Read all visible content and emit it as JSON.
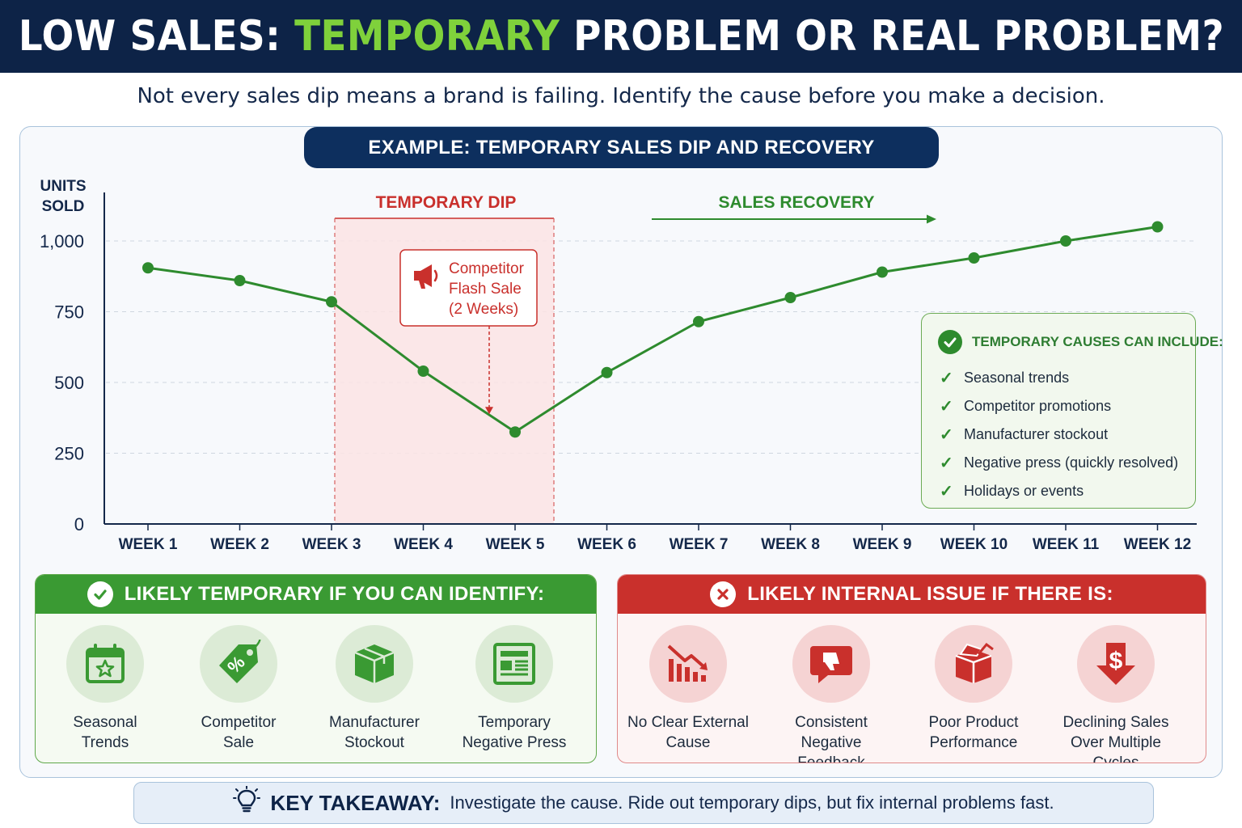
{
  "title": {
    "part1": "LOW SALES:",
    "highlight": "TEMPORARY",
    "part2": "PROBLEM OR REAL PROBLEM?"
  },
  "subtitle": "Not every sales dip means a brand is failing. Identify the cause before you make a decision.",
  "example_label": "EXAMPLE: TEMPORARY SALES DIP AND RECOVERY",
  "chart_data": {
    "type": "line",
    "ylabel_line1": "UNITS",
    "ylabel_line2": "SOLD",
    "categories": [
      "WEEK 1",
      "WEEK 2",
      "WEEK 3",
      "WEEK 4",
      "WEEK 5",
      "WEEK 6",
      "WEEK 7",
      "WEEK 8",
      "WEEK 9",
      "WEEK 10",
      "WEEK 11",
      "WEEK 12"
    ],
    "values": [
      905,
      860,
      785,
      540,
      325,
      535,
      715,
      800,
      890,
      940,
      1000,
      1050
    ],
    "ylim": [
      0,
      1000
    ],
    "yticks": [
      0,
      250,
      500,
      750,
      1000
    ],
    "ytick_labels": [
      "0",
      "250",
      "500",
      "750",
      "1,000"
    ],
    "grid": true,
    "line_color": "#2e8b2e",
    "dip_region": {
      "from": "WEEK 3",
      "to": "WEEK 5",
      "label": "TEMPORARY DIP",
      "color": "#c9302c"
    },
    "recovery_label": "SALES RECOVERY",
    "annotation": {
      "lines": [
        "Competitor",
        "Flash Sale",
        "(2 Weeks)"
      ],
      "points_to": "WEEK 5",
      "icon": "megaphone-icon"
    }
  },
  "temporary_causes": {
    "heading": "TEMPORARY CAUSES CAN INCLUDE:",
    "items": [
      "Seasonal trends",
      "Competitor promotions",
      "Manufacturer stockout",
      "Negative press (quickly resolved)",
      "Holidays or events"
    ]
  },
  "temporary_card": {
    "heading": "LIKELY TEMPORARY IF YOU CAN IDENTIFY:",
    "accent": "#3a9a33",
    "items": [
      {
        "label": "Seasonal\nTrends",
        "icon": "calendar-star-icon"
      },
      {
        "label": "Competitor\nSale",
        "icon": "percent-tag-icon"
      },
      {
        "label": "Manufacturer\nStockout",
        "icon": "box-icon"
      },
      {
        "label": "Temporary\nNegative Press",
        "icon": "newspaper-icon"
      }
    ]
  },
  "internal_card": {
    "heading": "LIKELY INTERNAL ISSUE IF THERE IS:",
    "accent": "#c9302c",
    "items": [
      {
        "label": "No Clear External\nCause",
        "icon": "declining-bars-icon"
      },
      {
        "label": "Consistent Negative\nFeedback",
        "icon": "thumbs-down-icon"
      },
      {
        "label": "Poor Product\nPerformance",
        "icon": "damaged-box-icon"
      },
      {
        "label": "Declining Sales\nOver Multiple Cycles",
        "icon": "dollar-down-arrow-icon"
      }
    ]
  },
  "takeaway": {
    "label": "KEY TAKEAWAY:",
    "text": "Investigate the cause. Ride out temporary dips, but fix internal problems fast.",
    "icon": "lightbulb-icon"
  }
}
